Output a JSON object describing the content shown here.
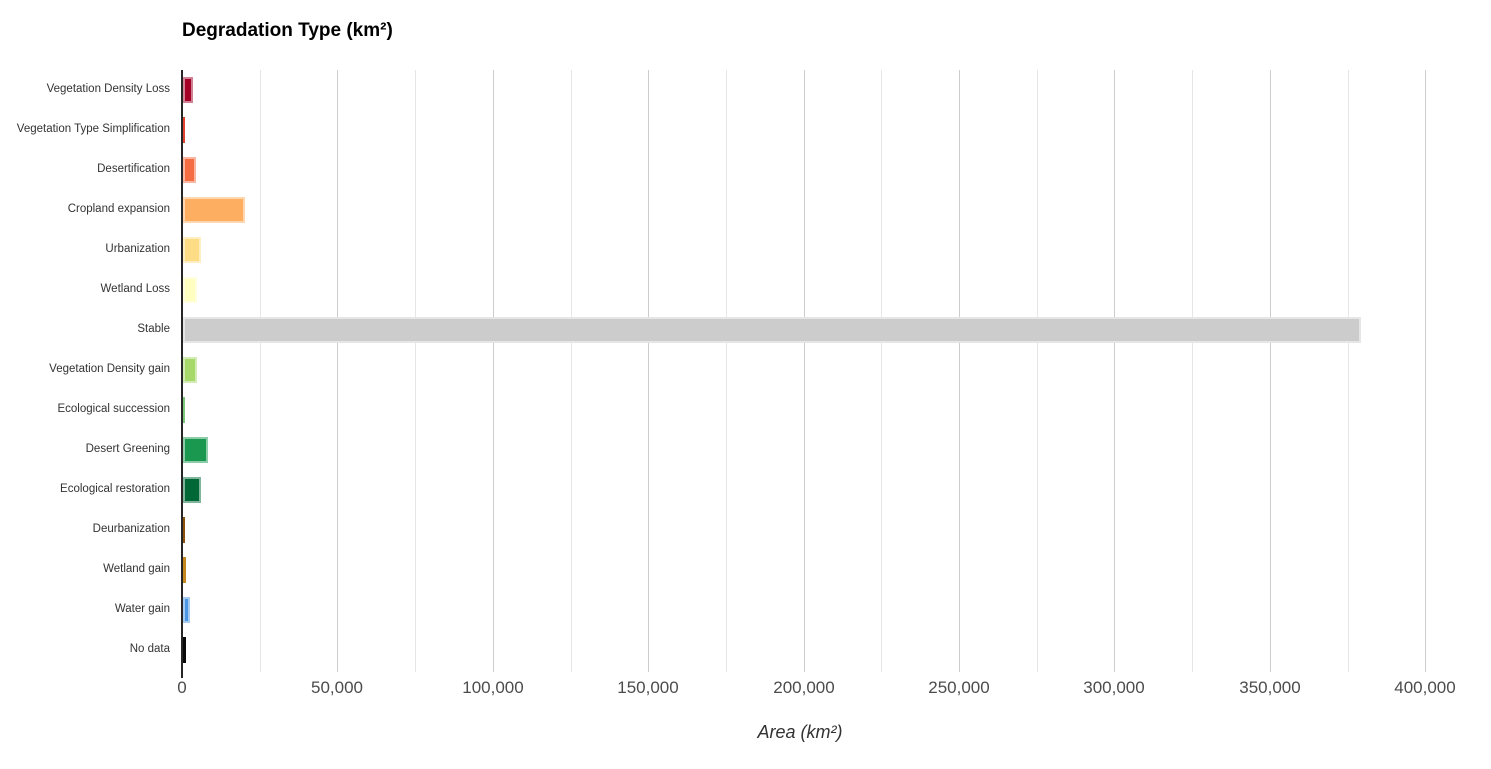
{
  "chart_data": {
    "type": "bar",
    "orientation": "horizontal",
    "title": "Degradation Type (km²)",
    "xlabel": "Area (km²)",
    "ylabel": "",
    "xlim": [
      0,
      410000
    ],
    "grid": "vertical; minor gridlines every 25,000 (light gray), major every 50,000 (gray)",
    "legend": "none",
    "x_tick_step": 50000,
    "x_tick_labels": [
      "0",
      "50,000",
      "100,000",
      "150,000",
      "200,000",
      "250,000",
      "300,000",
      "350,000",
      "400,000"
    ],
    "categories": [
      "Vegetation Density Loss",
      "Vegetation Type Simplification",
      "Desertification",
      "Cropland expansion",
      "Urbanization",
      "Wetland Loss",
      "Stable",
      "Vegetation Density gain",
      "Ecological succession",
      "Desert Greening",
      "Ecological restoration",
      "Deurbanization",
      "Wetland gain",
      "Water gain",
      "No data"
    ],
    "values": [
      3100,
      750,
      4200,
      20000,
      5900,
      4600,
      379000,
      4400,
      750,
      8000,
      5900,
      300,
      900,
      2250,
      1100
    ],
    "colors": [
      "#A50026",
      "#E0442E",
      "#F46D43",
      "#FDAE61",
      "#FDDC85",
      "#FFFFBF",
      "#CCCCCC",
      "#A6D96A",
      "#7CC87C",
      "#1A9850",
      "#006837",
      "#8C510A",
      "#C5871F",
      "#4D96E3",
      "#0A0A0A"
    ],
    "axis_color": "#262626",
    "major_grid_color": "#cccccc",
    "minor_grid_color": "#e6e6e6",
    "tick_label_color": "#4c4c4c",
    "category_label_color": "#333333"
  }
}
